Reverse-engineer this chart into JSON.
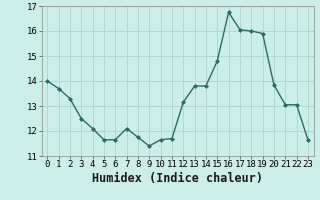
{
  "x": [
    0,
    1,
    2,
    3,
    4,
    5,
    6,
    7,
    8,
    9,
    10,
    11,
    12,
    13,
    14,
    15,
    16,
    17,
    18,
    19,
    20,
    21,
    22,
    23
  ],
  "y": [
    14.0,
    13.7,
    13.3,
    12.5,
    12.1,
    11.65,
    11.65,
    12.1,
    11.75,
    11.4,
    11.65,
    11.7,
    13.15,
    13.8,
    13.8,
    14.8,
    16.75,
    16.05,
    16.0,
    15.9,
    13.85,
    13.05,
    13.05,
    11.65
  ],
  "xlim": [
    -0.5,
    23.5
  ],
  "ylim": [
    11,
    17
  ],
  "yticks": [
    11,
    12,
    13,
    14,
    15,
    16,
    17
  ],
  "xticks": [
    0,
    1,
    2,
    3,
    4,
    5,
    6,
    7,
    8,
    9,
    10,
    11,
    12,
    13,
    14,
    15,
    16,
    17,
    18,
    19,
    20,
    21,
    22,
    23
  ],
  "xlabel": "Humidex (Indice chaleur)",
  "line_color": "#2e6b5e",
  "marker": "D",
  "marker_size": 2.0,
  "bg_color": "#cceee8",
  "grid_color": "#b0d8d0",
  "tick_fontsize": 6.5,
  "xlabel_fontsize": 8.5,
  "linewidth": 1.0
}
